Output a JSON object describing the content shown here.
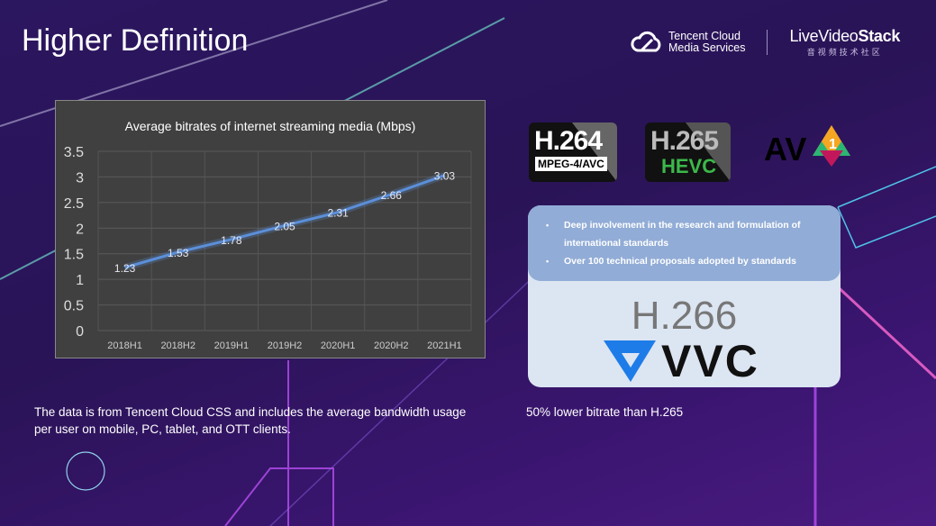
{
  "slide": {
    "title": "Higher Definition"
  },
  "logos": {
    "tencent_line1": "Tencent Cloud",
    "tencent_line2": "Media Services",
    "lvs_prefix": "LiveVideo",
    "lvs_bold": "Stack",
    "lvs_sub": "音视频技术社区"
  },
  "chart_data": {
    "type": "line",
    "title": "Average bitrates of internet streaming media (Mbps)",
    "categories": [
      "2018H1",
      "2018H2",
      "2019H1",
      "2019H2",
      "2020H1",
      "2020H2",
      "2021H1"
    ],
    "values": [
      1.23,
      1.53,
      1.78,
      2.05,
      2.31,
      2.66,
      3.03
    ],
    "data_labels": [
      "1.23",
      "1.53",
      "1.78",
      "2.05",
      "2.31",
      "2.66",
      "3.03"
    ],
    "yticks": [
      "0",
      "0.5",
      "1",
      "1.5",
      "2",
      "2.5",
      "3",
      "3.5"
    ],
    "ylim": [
      0,
      3.5
    ],
    "grid": true,
    "legend": "none",
    "line_color": "#5b8fd9",
    "background": "#404040"
  },
  "caption": "The data is from Tencent Cloud CSS and includes the average bandwidth usage per user on mobile, PC, tablet, and OTT clients.",
  "codecs": {
    "h264": "H.264",
    "h264_sub": "MPEG-4/AVC",
    "h265": "H.265",
    "h265_sub": "HEVC",
    "av1": "AV",
    "av1_num": "1"
  },
  "card": {
    "bullets": [
      "Deep involvement in the research and formulation of international standards",
      "Over 100 technical proposals adopted by standards"
    ],
    "h266": "H.266",
    "vvc": "VVC"
  },
  "vvc_caption": "50% lower bitrate than H.265"
}
